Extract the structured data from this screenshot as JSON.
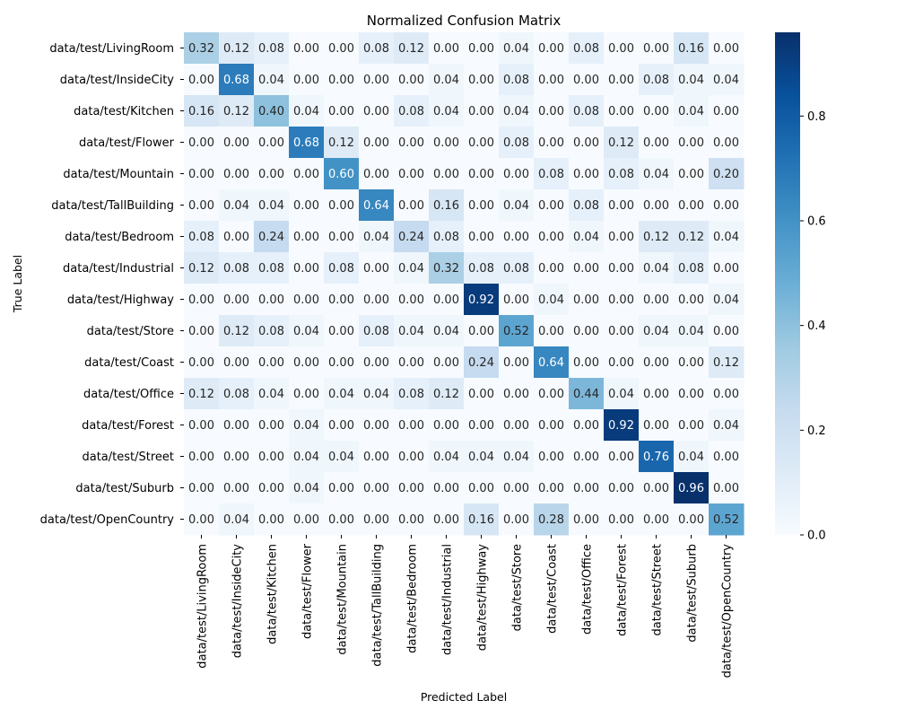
{
  "chart_data": {
    "type": "heatmap",
    "title": "Normalized Confusion Matrix",
    "xlabel": "Predicted Label",
    "ylabel": "True Label",
    "labels": [
      "data/test/LivingRoom",
      "data/test/InsideCity",
      "data/test/Kitchen",
      "data/test/Flower",
      "data/test/Mountain",
      "data/test/TallBuilding",
      "data/test/Bedroom",
      "data/test/Industrial",
      "data/test/Highway",
      "data/test/Store",
      "data/test/Coast",
      "data/test/Office",
      "data/test/Forest",
      "data/test/Street",
      "data/test/Suburb",
      "data/test/OpenCountry"
    ],
    "matrix": [
      [
        0.32,
        0.12,
        0.08,
        0.0,
        0.0,
        0.08,
        0.12,
        0.0,
        0.0,
        0.04,
        0.0,
        0.08,
        0.0,
        0.0,
        0.16,
        0.0
      ],
      [
        0.0,
        0.68,
        0.04,
        0.0,
        0.0,
        0.0,
        0.0,
        0.04,
        0.0,
        0.08,
        0.0,
        0.0,
        0.0,
        0.08,
        0.04,
        0.04
      ],
      [
        0.16,
        0.12,
        0.4,
        0.04,
        0.0,
        0.0,
        0.08,
        0.04,
        0.0,
        0.04,
        0.0,
        0.08,
        0.0,
        0.0,
        0.04,
        0.0
      ],
      [
        0.0,
        0.0,
        0.0,
        0.68,
        0.12,
        0.0,
        0.0,
        0.0,
        0.0,
        0.08,
        0.0,
        0.0,
        0.12,
        0.0,
        0.0,
        0.0
      ],
      [
        0.0,
        0.0,
        0.0,
        0.0,
        0.6,
        0.0,
        0.0,
        0.0,
        0.0,
        0.0,
        0.08,
        0.0,
        0.08,
        0.04,
        0.0,
        0.2
      ],
      [
        0.0,
        0.04,
        0.04,
        0.0,
        0.0,
        0.64,
        0.0,
        0.16,
        0.0,
        0.04,
        0.0,
        0.08,
        0.0,
        0.0,
        0.0,
        0.0
      ],
      [
        0.08,
        0.0,
        0.24,
        0.0,
        0.0,
        0.04,
        0.24,
        0.08,
        0.0,
        0.0,
        0.0,
        0.04,
        0.0,
        0.12,
        0.12,
        0.04
      ],
      [
        0.12,
        0.08,
        0.08,
        0.0,
        0.08,
        0.0,
        0.04,
        0.32,
        0.08,
        0.08,
        0.0,
        0.0,
        0.0,
        0.04,
        0.08,
        0.0
      ],
      [
        0.0,
        0.0,
        0.0,
        0.0,
        0.0,
        0.0,
        0.0,
        0.0,
        0.92,
        0.0,
        0.04,
        0.0,
        0.0,
        0.0,
        0.0,
        0.04
      ],
      [
        0.0,
        0.12,
        0.08,
        0.04,
        0.0,
        0.08,
        0.04,
        0.04,
        0.0,
        0.52,
        0.0,
        0.0,
        0.0,
        0.04,
        0.04,
        0.0
      ],
      [
        0.0,
        0.0,
        0.0,
        0.0,
        0.0,
        0.0,
        0.0,
        0.0,
        0.24,
        0.0,
        0.64,
        0.0,
        0.0,
        0.0,
        0.0,
        0.12
      ],
      [
        0.12,
        0.08,
        0.04,
        0.0,
        0.04,
        0.04,
        0.08,
        0.12,
        0.0,
        0.0,
        0.0,
        0.44,
        0.04,
        0.0,
        0.0,
        0.0
      ],
      [
        0.0,
        0.0,
        0.0,
        0.04,
        0.0,
        0.0,
        0.0,
        0.0,
        0.0,
        0.0,
        0.0,
        0.0,
        0.92,
        0.0,
        0.0,
        0.04
      ],
      [
        0.0,
        0.0,
        0.0,
        0.04,
        0.04,
        0.0,
        0.0,
        0.04,
        0.04,
        0.04,
        0.0,
        0.0,
        0.0,
        0.76,
        0.04,
        0.0
      ],
      [
        0.0,
        0.0,
        0.0,
        0.04,
        0.0,
        0.0,
        0.0,
        0.0,
        0.0,
        0.0,
        0.0,
        0.0,
        0.0,
        0.0,
        0.96,
        0.0
      ],
      [
        0.0,
        0.04,
        0.0,
        0.0,
        0.0,
        0.0,
        0.0,
        0.0,
        0.16,
        0.0,
        0.28,
        0.0,
        0.0,
        0.0,
        0.0,
        0.52
      ]
    ],
    "value_format": "2 decimals",
    "colorbar": {
      "range": [
        0.0,
        0.96
      ],
      "ticks": [
        0.0,
        0.2,
        0.4,
        0.6,
        0.8
      ],
      "tick_labels": [
        "0.0",
        "0.2",
        "0.4",
        "0.6",
        "0.8"
      ],
      "colormap": "Blues",
      "colors": [
        "#f7fbff",
        "#deebf7",
        "#c6dbef",
        "#9ecae1",
        "#6baed6",
        "#4292c6",
        "#2171b5",
        "#08519c",
        "#08306b"
      ]
    },
    "grid": false,
    "legend": "colorbar-right"
  }
}
